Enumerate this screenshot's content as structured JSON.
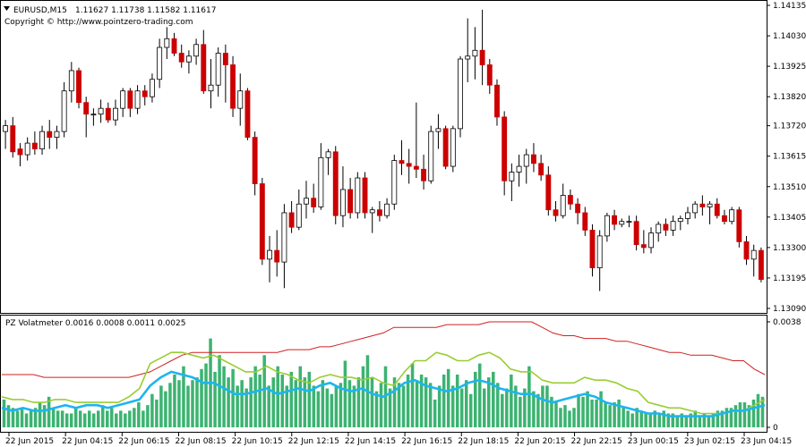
{
  "chart_data": [
    {
      "type": "candlestick",
      "symbol_header": "EURUSD,M15",
      "ohlc_header": "1.11627 1.11738 1.11582 1.11617",
      "copyright": "Copyright © http://www.pointzero-trading.com",
      "y_ticks": [
        "1.14135",
        "1.14030",
        "1.13925",
        "1.13820",
        "1.13720",
        "1.13615",
        "1.13510",
        "1.13405",
        "1.13300",
        "1.13195",
        "1.13090"
      ],
      "ylim": [
        1.1309,
        1.14135
      ],
      "colors": {
        "bull_body": "#ffffff",
        "bear_body": "#cc0000",
        "wick": "#000000"
      },
      "candles": [
        {
          "o": 1.137,
          "h": 1.1374,
          "l": 1.1364,
          "c": 1.1372
        },
        {
          "o": 1.1372,
          "h": 1.1375,
          "l": 1.1361,
          "c": 1.1363
        },
        {
          "o": 1.1364,
          "h": 1.1366,
          "l": 1.1358,
          "c": 1.1362
        },
        {
          "o": 1.1362,
          "h": 1.1368,
          "l": 1.136,
          "c": 1.1366
        },
        {
          "o": 1.1366,
          "h": 1.137,
          "l": 1.1362,
          "c": 1.1364
        },
        {
          "o": 1.1364,
          "h": 1.1372,
          "l": 1.1362,
          "c": 1.137
        },
        {
          "o": 1.137,
          "h": 1.1374,
          "l": 1.1364,
          "c": 1.1368
        },
        {
          "o": 1.1368,
          "h": 1.1372,
          "l": 1.1364,
          "c": 1.137
        },
        {
          "o": 1.137,
          "h": 1.1387,
          "l": 1.1368,
          "c": 1.1384
        },
        {
          "o": 1.1384,
          "h": 1.1394,
          "l": 1.138,
          "c": 1.1391
        },
        {
          "o": 1.1391,
          "h": 1.1392,
          "l": 1.1378,
          "c": 1.138
        },
        {
          "o": 1.138,
          "h": 1.1382,
          "l": 1.1368,
          "c": 1.1376
        },
        {
          "o": 1.1376,
          "h": 1.1378,
          "l": 1.1372,
          "c": 1.1376
        },
        {
          "o": 1.1376,
          "h": 1.1381,
          "l": 1.1373,
          "c": 1.1378
        },
        {
          "o": 1.1378,
          "h": 1.138,
          "l": 1.1373,
          "c": 1.1374
        },
        {
          "o": 1.1374,
          "h": 1.1381,
          "l": 1.1372,
          "c": 1.1378
        },
        {
          "o": 1.1378,
          "h": 1.1385,
          "l": 1.1375,
          "c": 1.1384
        },
        {
          "o": 1.1384,
          "h": 1.1385,
          "l": 1.1375,
          "c": 1.1378
        },
        {
          "o": 1.1378,
          "h": 1.1386,
          "l": 1.1376,
          "c": 1.1384
        },
        {
          "o": 1.1384,
          "h": 1.1386,
          "l": 1.1379,
          "c": 1.1382
        },
        {
          "o": 1.1382,
          "h": 1.139,
          "l": 1.138,
          "c": 1.1388
        },
        {
          "o": 1.1388,
          "h": 1.1402,
          "l": 1.1385,
          "c": 1.1399
        },
        {
          "o": 1.1399,
          "h": 1.1406,
          "l": 1.1395,
          "c": 1.1402
        },
        {
          "o": 1.1402,
          "h": 1.1404,
          "l": 1.1396,
          "c": 1.1397
        },
        {
          "o": 1.1397,
          "h": 1.14,
          "l": 1.1392,
          "c": 1.1394
        },
        {
          "o": 1.1394,
          "h": 1.1398,
          "l": 1.139,
          "c": 1.1396
        },
        {
          "o": 1.1396,
          "h": 1.1402,
          "l": 1.1393,
          "c": 1.14
        },
        {
          "o": 1.14,
          "h": 1.1405,
          "l": 1.1383,
          "c": 1.1384
        },
        {
          "o": 1.1384,
          "h": 1.1395,
          "l": 1.1378,
          "c": 1.1386
        },
        {
          "o": 1.1386,
          "h": 1.1399,
          "l": 1.1382,
          "c": 1.1397
        },
        {
          "o": 1.1397,
          "h": 1.14,
          "l": 1.138,
          "c": 1.1393
        },
        {
          "o": 1.1393,
          "h": 1.1396,
          "l": 1.1375,
          "c": 1.1378
        },
        {
          "o": 1.1378,
          "h": 1.139,
          "l": 1.1372,
          "c": 1.1384
        },
        {
          "o": 1.1384,
          "h": 1.1385,
          "l": 1.1367,
          "c": 1.1368
        },
        {
          "o": 1.1368,
          "h": 1.137,
          "l": 1.1348,
          "c": 1.1352
        },
        {
          "o": 1.1352,
          "h": 1.1354,
          "l": 1.1324,
          "c": 1.1326
        },
        {
          "o": 1.1326,
          "h": 1.1334,
          "l": 1.1318,
          "c": 1.1329
        },
        {
          "o": 1.1329,
          "h": 1.1336,
          "l": 1.132,
          "c": 1.1325
        },
        {
          "o": 1.1325,
          "h": 1.1345,
          "l": 1.1316,
          "c": 1.1342
        },
        {
          "o": 1.1342,
          "h": 1.1346,
          "l": 1.1335,
          "c": 1.1337
        },
        {
          "o": 1.1337,
          "h": 1.135,
          "l": 1.1336,
          "c": 1.1345
        },
        {
          "o": 1.1345,
          "h": 1.1353,
          "l": 1.134,
          "c": 1.1347
        },
        {
          "o": 1.1347,
          "h": 1.1352,
          "l": 1.1342,
          "c": 1.1344
        },
        {
          "o": 1.1344,
          "h": 1.1366,
          "l": 1.1343,
          "c": 1.1361
        },
        {
          "o": 1.1361,
          "h": 1.1364,
          "l": 1.1355,
          "c": 1.1363
        },
        {
          "o": 1.1363,
          "h": 1.1365,
          "l": 1.1338,
          "c": 1.1341
        },
        {
          "o": 1.1341,
          "h": 1.1358,
          "l": 1.1337,
          "c": 1.135
        },
        {
          "o": 1.135,
          "h": 1.1354,
          "l": 1.134,
          "c": 1.1342
        },
        {
          "o": 1.1342,
          "h": 1.1356,
          "l": 1.134,
          "c": 1.1354
        },
        {
          "o": 1.1354,
          "h": 1.1356,
          "l": 1.134,
          "c": 1.1342
        },
        {
          "o": 1.1342,
          "h": 1.1344,
          "l": 1.1335,
          "c": 1.1343
        },
        {
          "o": 1.1343,
          "h": 1.1346,
          "l": 1.1339,
          "c": 1.1341
        },
        {
          "o": 1.1341,
          "h": 1.1347,
          "l": 1.134,
          "c": 1.1345
        },
        {
          "o": 1.1345,
          "h": 1.1362,
          "l": 1.1343,
          "c": 1.136
        },
        {
          "o": 1.136,
          "h": 1.1367,
          "l": 1.1355,
          "c": 1.1359
        },
        {
          "o": 1.1359,
          "h": 1.1364,
          "l": 1.1352,
          "c": 1.1358
        },
        {
          "o": 1.1358,
          "h": 1.138,
          "l": 1.1354,
          "c": 1.1357
        },
        {
          "o": 1.1357,
          "h": 1.1362,
          "l": 1.135,
          "c": 1.1353
        },
        {
          "o": 1.1353,
          "h": 1.1372,
          "l": 1.1352,
          "c": 1.137
        },
        {
          "o": 1.137,
          "h": 1.1376,
          "l": 1.1364,
          "c": 1.1371
        },
        {
          "o": 1.1371,
          "h": 1.1372,
          "l": 1.1357,
          "c": 1.1358
        },
        {
          "o": 1.1358,
          "h": 1.1372,
          "l": 1.1356,
          "c": 1.1371
        },
        {
          "o": 1.1371,
          "h": 1.1396,
          "l": 1.1368,
          "c": 1.1395
        },
        {
          "o": 1.1395,
          "h": 1.1409,
          "l": 1.1387,
          "c": 1.1396
        },
        {
          "o": 1.1396,
          "h": 1.1406,
          "l": 1.1388,
          "c": 1.1398
        },
        {
          "o": 1.1398,
          "h": 1.1412,
          "l": 1.1386,
          "c": 1.1393
        },
        {
          "o": 1.1393,
          "h": 1.1395,
          "l": 1.1383,
          "c": 1.1386
        },
        {
          "o": 1.1386,
          "h": 1.1388,
          "l": 1.1372,
          "c": 1.1375
        },
        {
          "o": 1.1375,
          "h": 1.1377,
          "l": 1.1348,
          "c": 1.1353
        },
        {
          "o": 1.1353,
          "h": 1.1359,
          "l": 1.1346,
          "c": 1.1356
        },
        {
          "o": 1.1356,
          "h": 1.1362,
          "l": 1.1351,
          "c": 1.1358
        },
        {
          "o": 1.1358,
          "h": 1.1364,
          "l": 1.1352,
          "c": 1.1362
        },
        {
          "o": 1.1362,
          "h": 1.1366,
          "l": 1.1356,
          "c": 1.1359
        },
        {
          "o": 1.1359,
          "h": 1.1362,
          "l": 1.1353,
          "c": 1.1355
        },
        {
          "o": 1.1355,
          "h": 1.1358,
          "l": 1.1341,
          "c": 1.1343
        },
        {
          "o": 1.1343,
          "h": 1.1346,
          "l": 1.1339,
          "c": 1.1341
        },
        {
          "o": 1.1341,
          "h": 1.1352,
          "l": 1.134,
          "c": 1.1348
        },
        {
          "o": 1.1348,
          "h": 1.135,
          "l": 1.1343,
          "c": 1.1345
        },
        {
          "o": 1.1345,
          "h": 1.1347,
          "l": 1.1338,
          "c": 1.1342
        },
        {
          "o": 1.1342,
          "h": 1.1344,
          "l": 1.1334,
          "c": 1.1336
        },
        {
          "o": 1.1336,
          "h": 1.1338,
          "l": 1.132,
          "c": 1.1323
        },
        {
          "o": 1.1323,
          "h": 1.1336,
          "l": 1.1315,
          "c": 1.1334
        },
        {
          "o": 1.1334,
          "h": 1.1342,
          "l": 1.1332,
          "c": 1.1341
        },
        {
          "o": 1.1341,
          "h": 1.1343,
          "l": 1.1336,
          "c": 1.1338
        },
        {
          "o": 1.1338,
          "h": 1.134,
          "l": 1.1337,
          "c": 1.1339
        },
        {
          "o": 1.1339,
          "h": 1.1341,
          "l": 1.1337,
          "c": 1.1339
        },
        {
          "o": 1.1339,
          "h": 1.1341,
          "l": 1.1329,
          "c": 1.1331
        },
        {
          "o": 1.1331,
          "h": 1.1336,
          "l": 1.1328,
          "c": 1.133
        },
        {
          "o": 1.133,
          "h": 1.1337,
          "l": 1.1328,
          "c": 1.1335
        },
        {
          "o": 1.1335,
          "h": 1.1339,
          "l": 1.1332,
          "c": 1.1338
        },
        {
          "o": 1.1338,
          "h": 1.134,
          "l": 1.1334,
          "c": 1.1336
        },
        {
          "o": 1.1336,
          "h": 1.1341,
          "l": 1.1334,
          "c": 1.1339
        },
        {
          "o": 1.1339,
          "h": 1.1341,
          "l": 1.1336,
          "c": 1.134
        },
        {
          "o": 1.134,
          "h": 1.1344,
          "l": 1.1338,
          "c": 1.1342
        },
        {
          "o": 1.1342,
          "h": 1.1346,
          "l": 1.134,
          "c": 1.1345
        },
        {
          "o": 1.1345,
          "h": 1.1348,
          "l": 1.1341,
          "c": 1.1344
        },
        {
          "o": 1.1344,
          "h": 1.1346,
          "l": 1.1338,
          "c": 1.1345
        },
        {
          "o": 1.1345,
          "h": 1.1347,
          "l": 1.134,
          "c": 1.1341
        },
        {
          "o": 1.1341,
          "h": 1.1343,
          "l": 1.1338,
          "c": 1.1339
        },
        {
          "o": 1.1339,
          "h": 1.1344,
          "l": 1.1338,
          "c": 1.1343
        },
        {
          "o": 1.1343,
          "h": 1.1344,
          "l": 1.133,
          "c": 1.1332
        },
        {
          "o": 1.1332,
          "h": 1.1334,
          "l": 1.1324,
          "c": 1.1326
        },
        {
          "o": 1.1326,
          "h": 1.1331,
          "l": 1.132,
          "c": 1.1329
        },
        {
          "o": 1.1329,
          "h": 1.133,
          "l": 1.1318,
          "c": 1.1319
        }
      ],
      "x_ticks": [
        "22 Jun 2015",
        "22 Jun 04:15",
        "22 Jun 06:15",
        "22 Jun 08:15",
        "22 Jun 10:15",
        "22 Jun 12:15",
        "22 Jun 14:15",
        "22 Jun 16:15",
        "22 Jun 18:15",
        "22 Jun 20:15",
        "22 Jun 22:15",
        "23 Jun 00:15",
        "23 Jun 02:15",
        "23 Jun 04:15"
      ]
    },
    {
      "type": "bar+line",
      "indicator_header": "PZ Volatmeter 0.0016 0.0008 0.0011 0.0025",
      "y_ticks": [
        "0.0038",
        "0"
      ],
      "ylim": [
        0,
        0.0038
      ],
      "colors": {
        "bars": "#3cb371",
        "cyan": "#1eb4f0",
        "green": "#9acd32",
        "red": "#d02020"
      },
      "bars": [
        0.001,
        0.0008,
        0.0007,
        0.0006,
        0.0007,
        0.0005,
        0.0006,
        0.0007,
        0.0009,
        0.0008,
        0.0011,
        0.0007,
        0.0006,
        0.0006,
        0.0005,
        0.0005,
        0.0007,
        0.0006,
        0.0005,
        0.0006,
        0.0005,
        0.0006,
        0.0008,
        0.0006,
        0.0007,
        0.0005,
        0.0006,
        0.0005,
        0.0006,
        0.0007,
        0.0009,
        0.0006,
        0.0008,
        0.0012,
        0.001,
        0.0015,
        0.0013,
        0.0016,
        0.0019,
        0.0017,
        0.0022,
        0.0015,
        0.0017,
        0.0018,
        0.0021,
        0.0023,
        0.0032,
        0.002,
        0.0026,
        0.0022,
        0.0018,
        0.0021,
        0.0015,
        0.0017,
        0.0014,
        0.0018,
        0.0022,
        0.0019,
        0.0026,
        0.0015,
        0.0018,
        0.0022,
        0.0019,
        0.0015,
        0.002,
        0.0017,
        0.0022,
        0.0018,
        0.002,
        0.0015,
        0.0013,
        0.0017,
        0.0014,
        0.0012,
        0.0015,
        0.0016,
        0.0024,
        0.0017,
        0.0015,
        0.0018,
        0.0022,
        0.0026,
        0.0018,
        0.0013,
        0.0016,
        0.0022,
        0.0014,
        0.0018,
        0.0016,
        0.0015,
        0.0019,
        0.0023,
        0.0017,
        0.0019,
        0.0018,
        0.0016,
        0.001,
        0.0015,
        0.0019,
        0.0021,
        0.0015,
        0.0019,
        0.0014,
        0.0017,
        0.0012,
        0.002,
        0.0023,
        0.0014,
        0.0018,
        0.002,
        0.0016,
        0.0012,
        0.0014,
        0.0019,
        0.0015,
        0.0011,
        0.0014,
        0.0022,
        0.0013,
        0.0012,
        0.0015,
        0.0015,
        0.0011,
        0.0009,
        0.0007,
        0.0008,
        0.0006,
        0.0007,
        0.0012,
        0.0011,
        0.0013,
        0.001,
        0.001,
        0.0013,
        0.0009,
        0.0008,
        0.0009,
        0.001,
        0.0007,
        0.0006,
        0.0005,
        0.0007,
        0.0006,
        0.0005,
        0.0005,
        0.0006,
        0.0005,
        0.0006,
        0.0005,
        0.0005,
        0.0004,
        0.0005,
        0.0004,
        0.0005,
        0.0006,
        0.0004,
        0.0005,
        0.0004,
        0.0005,
        0.0006,
        0.0006,
        0.0007,
        0.0007,
        0.0008,
        0.0009,
        0.0009,
        0.0008,
        0.001,
        0.0012,
        0.0011
      ],
      "cyan_line": [
        0.0007,
        0.0006,
        0.0007,
        0.0006,
        0.0006,
        0.0007,
        0.0008,
        0.0007,
        0.0008,
        0.0008,
        0.0007,
        0.0008,
        0.0009,
        0.001,
        0.0015,
        0.0018,
        0.002,
        0.0019,
        0.0018,
        0.0016,
        0.0016,
        0.0014,
        0.0012,
        0.0012,
        0.0013,
        0.0014,
        0.0012,
        0.0013,
        0.0014,
        0.0013,
        0.0015,
        0.0016,
        0.0014,
        0.0013,
        0.0014,
        0.0012,
        0.0011,
        0.0013,
        0.0016,
        0.0017,
        0.0015,
        0.0014,
        0.0013,
        0.0014,
        0.0016,
        0.0017,
        0.0016,
        0.0014,
        0.0013,
        0.0012,
        0.0012,
        0.001,
        0.0009,
        0.001,
        0.0011,
        0.0012,
        0.0011,
        0.0009,
        0.0008,
        0.0007,
        0.0006,
        0.0005,
        0.0005,
        0.0004,
        0.0004,
        0.0004,
        0.0004,
        0.0004,
        0.0005,
        0.0006,
        0.0006,
        0.0007,
        0.0008
      ],
      "green_line": [
        0.0011,
        0.001,
        0.001,
        0.0009,
        0.0009,
        0.001,
        0.001,
        0.0009,
        0.0009,
        0.0009,
        0.0009,
        0.0009,
        0.0011,
        0.0014,
        0.0023,
        0.0025,
        0.0027,
        0.0027,
        0.0026,
        0.0025,
        0.0026,
        0.0024,
        0.0022,
        0.002,
        0.002,
        0.0022,
        0.002,
        0.0019,
        0.0017,
        0.0016,
        0.0018,
        0.0019,
        0.0018,
        0.0018,
        0.0017,
        0.0018,
        0.0016,
        0.0015,
        0.002,
        0.0024,
        0.0024,
        0.0027,
        0.0026,
        0.0024,
        0.0024,
        0.0026,
        0.0027,
        0.0025,
        0.0021,
        0.002,
        0.002,
        0.0017,
        0.0016,
        0.0016,
        0.0016,
        0.0018,
        0.0017,
        0.0017,
        0.0016,
        0.0014,
        0.0013,
        0.0009,
        0.0008,
        0.0007,
        0.0007,
        0.0006,
        0.0005,
        0.0005,
        0.0005,
        0.0006,
        0.0006,
        0.0008,
        0.001
      ],
      "red_line": [
        0.0019,
        0.0019,
        0.0019,
        0.0019,
        0.0018,
        0.0018,
        0.0018,
        0.0018,
        0.0018,
        0.0018,
        0.0018,
        0.0018,
        0.0018,
        0.0019,
        0.002,
        0.0022,
        0.0024,
        0.0026,
        0.0027,
        0.0027,
        0.0027,
        0.0027,
        0.0027,
        0.0027,
        0.0027,
        0.0027,
        0.0027,
        0.0028,
        0.0028,
        0.0028,
        0.0029,
        0.0029,
        0.003,
        0.0031,
        0.0032,
        0.0033,
        0.0034,
        0.0036,
        0.0036,
        0.0036,
        0.0036,
        0.0036,
        0.0037,
        0.0037,
        0.0037,
        0.0037,
        0.0038,
        0.0038,
        0.0038,
        0.0038,
        0.0038,
        0.0036,
        0.0034,
        0.0033,
        0.0033,
        0.0032,
        0.0032,
        0.0032,
        0.0031,
        0.0031,
        0.003,
        0.0029,
        0.0028,
        0.0027,
        0.0027,
        0.0026,
        0.0026,
        0.0026,
        0.0025,
        0.0024,
        0.0024,
        0.0021,
        0.0019
      ]
    }
  ]
}
